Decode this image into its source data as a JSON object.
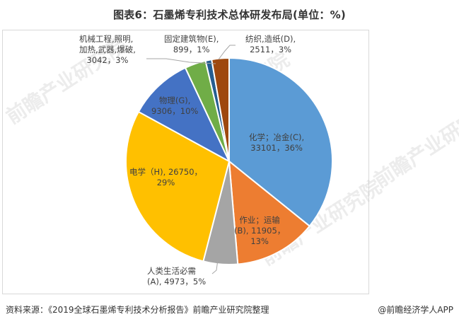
{
  "title": "图表6：石墨烯专利技术总体研发布局(单位：%)",
  "source": "资料来源：《2019全球石墨烯专利技术分析报告》前瞻产业研究院整理",
  "credit": "@前瞻经济学人APP",
  "watermark": "前瞻产业研究院",
  "chart_data": {
    "type": "pie",
    "title": "图表6：石墨烯专利技术总体研发布局(单位：%)",
    "start_angle": "12 o'clock, clockwise",
    "unit": "%",
    "slices": [
      {
        "code": "C",
        "name": "化学；冶金",
        "value": 33101,
        "percent": 36,
        "color": "#5b9bd5",
        "label_line1": "化学；冶金(C),",
        "label_line2": "33101，36%"
      },
      {
        "code": "B",
        "name": "作业；运输",
        "value": 11905,
        "percent": 13,
        "color": "#ed7d31",
        "label_line1": "作业；运输",
        "label_line2": "(B), 11905，",
        "label_line3": "13%"
      },
      {
        "code": "A",
        "name": "人类生活必需",
        "value": 4973,
        "percent": 5,
        "color": "#a5a5a5",
        "label_line1": "人类生活必需",
        "label_line2": "(A), 4973，5%"
      },
      {
        "code": "H",
        "name": "电学",
        "value": 26750,
        "percent": 29,
        "color": "#ffc000",
        "label_line1": "电学（H), 26750，",
        "label_line2": "29%"
      },
      {
        "code": "G",
        "name": "物理",
        "value": 9306,
        "percent": 10,
        "color": "#4472c4",
        "label_line1": "物理(G),",
        "label_line2": "9306，10%"
      },
      {
        "code": "F",
        "name": "机械工程,照明,加热,武器,爆破",
        "value": 3042,
        "percent": 3,
        "color": "#70ad47",
        "label_line1": "机械工程,照明,",
        "label_line2": "加热,武器,爆破,",
        "label_line3": "3042，3%"
      },
      {
        "code": "E",
        "name": "固定建筑物",
        "value": 899,
        "percent": 1,
        "color": "#255e91",
        "label_line1": "固定建筑物(E),",
        "label_line2": "899，1%"
      },
      {
        "code": "D",
        "name": "纺织,造纸",
        "value": 2511,
        "percent": 3,
        "color": "#9e480e",
        "label_line1": "纺织,造纸(D),",
        "label_line2": "2511，3%"
      }
    ],
    "legend": "none (data labels on slices)"
  }
}
